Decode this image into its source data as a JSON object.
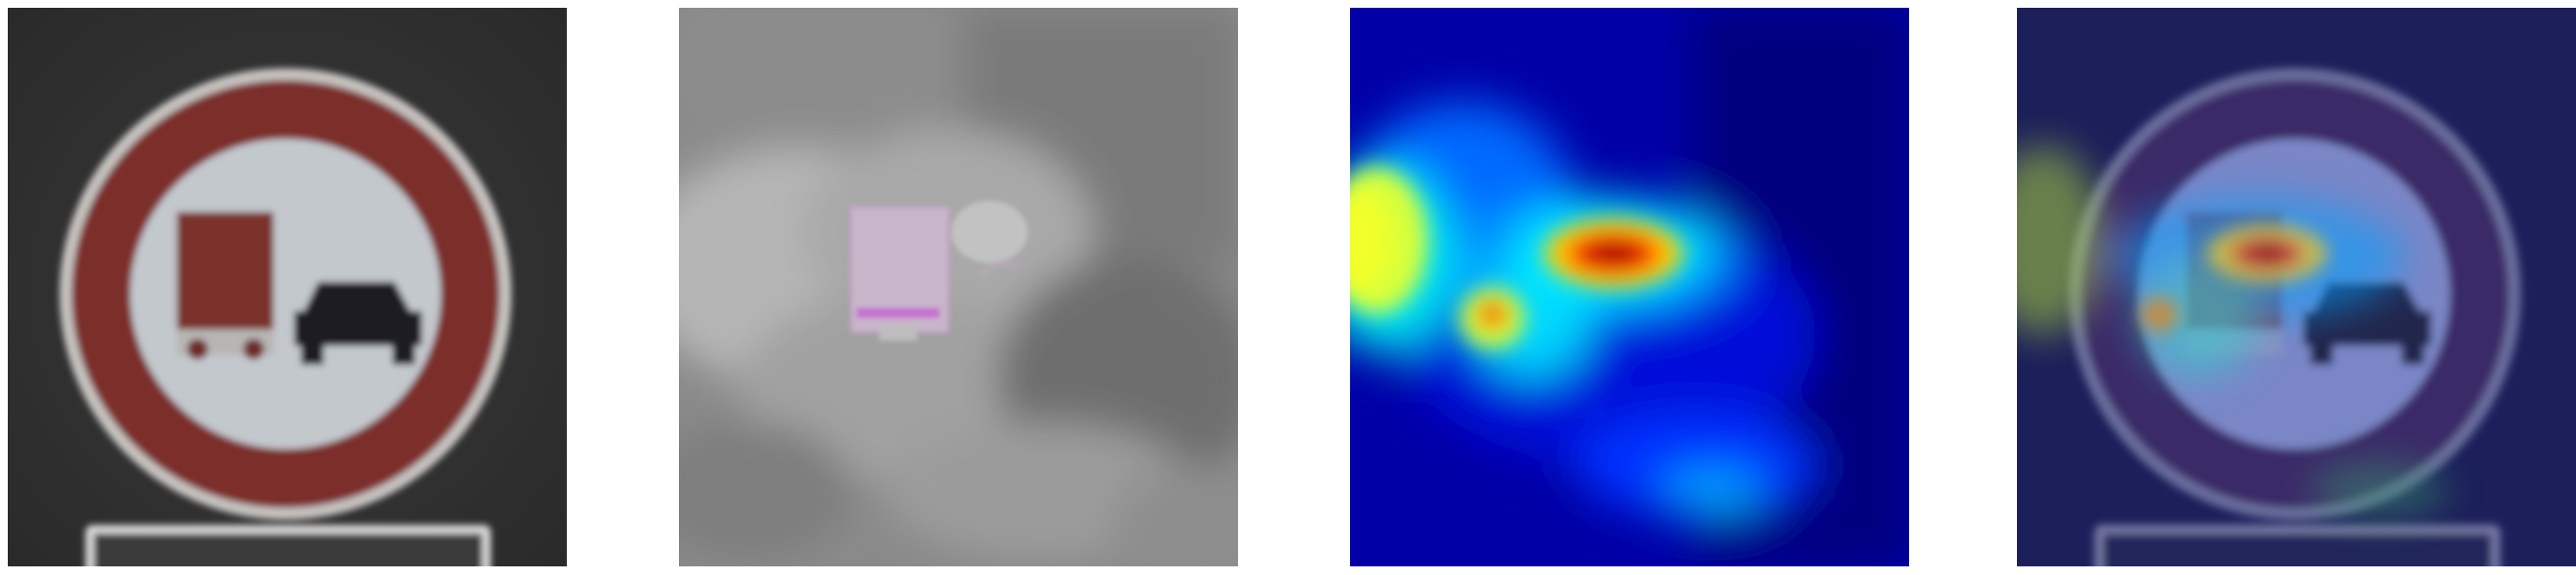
{
  "figure": {
    "panels": [
      {
        "id": "original",
        "subject": "no-overtaking-for-trucks-sign",
        "colors": {
          "ring": "#7d2e29",
          "truck": "#7a3029",
          "car": "#1e1e1e",
          "background": "#2f2f2f",
          "disc": "#c9cdd0"
        }
      },
      {
        "id": "perturbed",
        "subject": "grayscale-perturbation-map",
        "colors": {
          "highlight": "#d07ad6"
        }
      },
      {
        "id": "saliency-heatmap",
        "subject": "jet-colormap-heatmap",
        "colors": {
          "low": "#00008f",
          "mid": "#00e5ff",
          "high": "#b00000"
        }
      },
      {
        "id": "overlay",
        "subject": "heatmap-overlay-on-sign",
        "colors": {
          "tint": "#2a2f70"
        }
      }
    ]
  }
}
